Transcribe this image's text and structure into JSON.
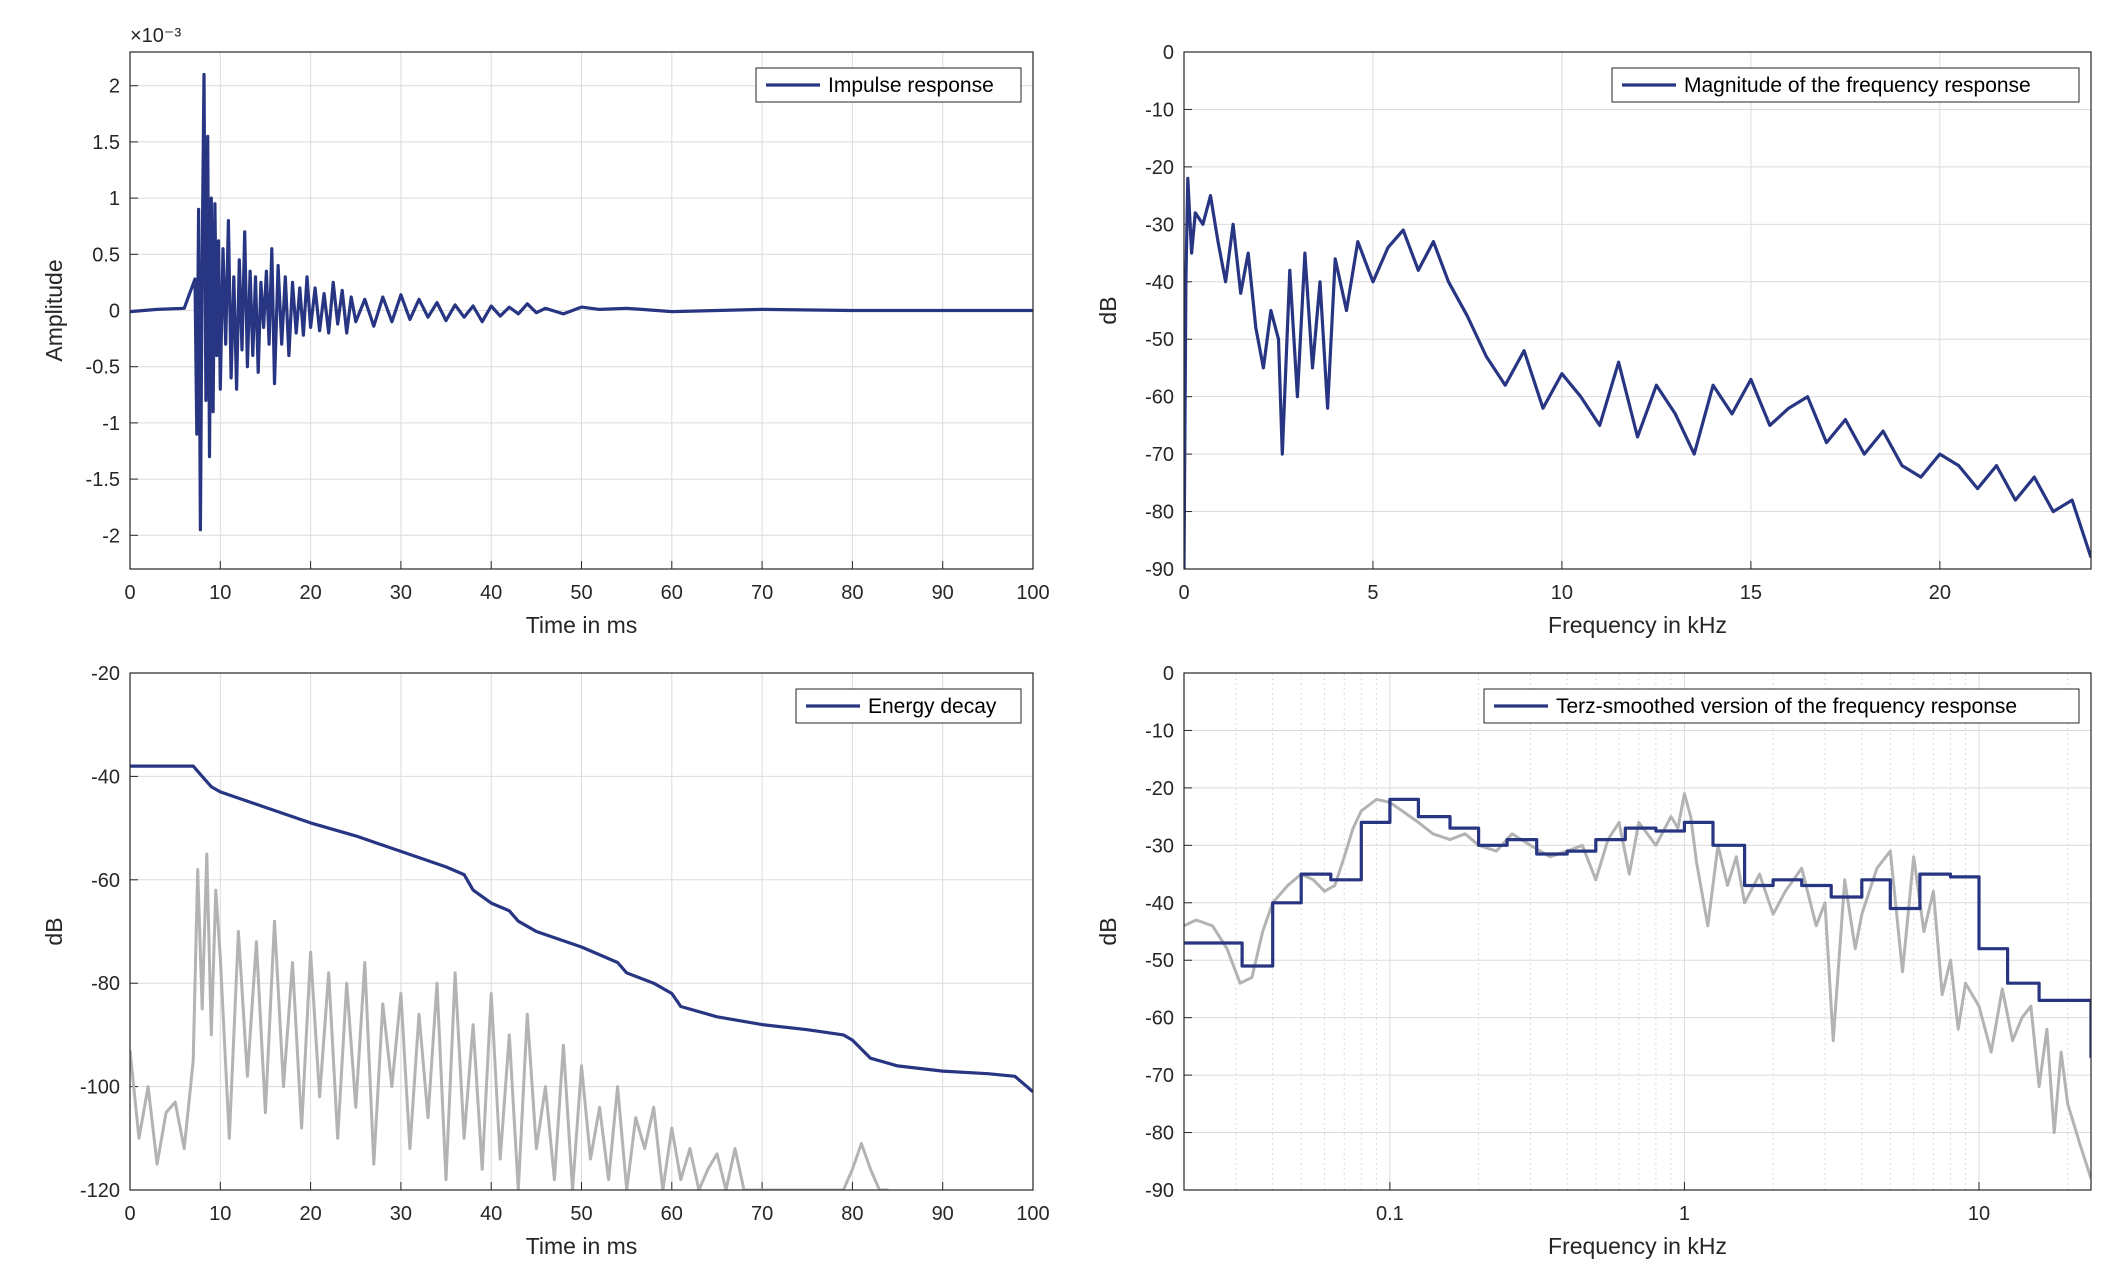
{
  "colors": {
    "series": "#273582",
    "gray": "#b3b3b3",
    "axis": "#262626",
    "grid": "#dcdcdc"
  },
  "chart_data": [
    {
      "type": "line",
      "xlabel": "Time in ms",
      "ylabel": "Amplitude",
      "exponent_label": "×10⁻³",
      "xlim": [
        0,
        100
      ],
      "ylim": [
        -2.3,
        2.3
      ],
      "xticks": [
        0,
        10,
        20,
        30,
        40,
        50,
        60,
        70,
        80,
        90,
        100
      ],
      "yticks": [
        -2,
        -1.5,
        -1,
        -0.5,
        0,
        0.5,
        1,
        1.5,
        2
      ],
      "ytick_labels": [
        "-2",
        "-1.5",
        "-1",
        "-0.5",
        "0",
        "0.5",
        "1",
        "1.5",
        "2"
      ],
      "grid": true,
      "legend_position": "top-right",
      "series": [
        {
          "name": "Impulse response",
          "color": "#273582",
          "x": [
            0,
            3,
            6,
            7.2,
            7.4,
            7.6,
            7.8,
            8.0,
            8.2,
            8.4,
            8.6,
            8.8,
            9.0,
            9.2,
            9.4,
            9.6,
            9.8,
            10.0,
            10.3,
            10.6,
            10.9,
            11.2,
            11.5,
            11.8,
            12.1,
            12.4,
            12.7,
            13.0,
            13.3,
            13.6,
            13.9,
            14.2,
            14.5,
            14.8,
            15.1,
            15.4,
            15.7,
            16.0,
            16.4,
            16.8,
            17.2,
            17.6,
            18.0,
            18.4,
            18.8,
            19.2,
            19.6,
            20.0,
            20.5,
            21.0,
            21.5,
            22.0,
            22.5,
            23.0,
            23.5,
            24.0,
            24.5,
            25.0,
            26.0,
            27.0,
            28.0,
            29.0,
            30.0,
            31.0,
            32.0,
            33.0,
            34.0,
            35.0,
            36.0,
            37.0,
            38.0,
            39.0,
            40.0,
            41.0,
            42.0,
            43.0,
            44.0,
            45.0,
            46.0,
            48.0,
            50.0,
            52.0,
            55.0,
            60.0,
            70.0,
            80.0,
            90.0,
            100.0
          ],
          "y": [
            -0.01,
            0.01,
            0.02,
            0.28,
            -1.1,
            0.9,
            -1.95,
            0.5,
            2.1,
            -0.8,
            1.55,
            -1.3,
            1.0,
            -0.9,
            0.95,
            -0.4,
            0.62,
            -0.7,
            0.55,
            -0.3,
            0.8,
            -0.6,
            0.3,
            -0.7,
            0.45,
            -0.35,
            0.7,
            -0.5,
            0.35,
            -0.4,
            0.3,
            -0.55,
            0.25,
            -0.15,
            0.35,
            -0.3,
            0.55,
            -0.65,
            0.4,
            -0.3,
            0.3,
            -0.4,
            0.25,
            -0.2,
            0.2,
            -0.22,
            0.3,
            -0.15,
            0.2,
            -0.18,
            0.15,
            -0.2,
            0.25,
            -0.12,
            0.18,
            -0.2,
            0.12,
            -0.1,
            0.1,
            -0.14,
            0.12,
            -0.1,
            0.14,
            -0.08,
            0.1,
            -0.06,
            0.07,
            -0.09,
            0.05,
            -0.06,
            0.04,
            -0.1,
            0.04,
            -0.05,
            0.03,
            -0.03,
            0.06,
            -0.02,
            0.02,
            -0.03,
            0.03,
            0.01,
            0.02,
            -0.01,
            0.01,
            0.0,
            0.0,
            0.0
          ]
        }
      ]
    },
    {
      "type": "line",
      "xlabel": "Frequency in kHz",
      "ylabel": "dB",
      "xlim": [
        0,
        24
      ],
      "ylim": [
        -90,
        0
      ],
      "xticks": [
        0,
        5,
        10,
        15,
        20
      ],
      "yticks": [
        0,
        -10,
        -20,
        -30,
        -40,
        -50,
        -60,
        -70,
        -80,
        -90
      ],
      "grid": true,
      "legend_position": "top-right",
      "series": [
        {
          "name": "Magnitude of the frequency response",
          "color": "#273582",
          "x": [
            0,
            0.05,
            0.1,
            0.2,
            0.3,
            0.5,
            0.7,
            0.9,
            1.1,
            1.3,
            1.5,
            1.7,
            1.9,
            2.1,
            2.3,
            2.5,
            2.6,
            2.8,
            3.0,
            3.2,
            3.4,
            3.6,
            3.8,
            4.0,
            4.3,
            4.6,
            5.0,
            5.4,
            5.8,
            6.2,
            6.6,
            7.0,
            7.5,
            8.0,
            8.5,
            9.0,
            9.5,
            10.0,
            10.5,
            11.0,
            11.5,
            12.0,
            12.5,
            13.0,
            13.5,
            14.0,
            14.5,
            15.0,
            15.5,
            16.0,
            16.5,
            17.0,
            17.5,
            18.0,
            18.5,
            19.0,
            19.5,
            20.0,
            20.5,
            21.0,
            21.5,
            22.0,
            22.5,
            23.0,
            23.5,
            24.0
          ],
          "y": [
            -90,
            -40,
            -22,
            -35,
            -28,
            -30,
            -25,
            -33,
            -40,
            -30,
            -42,
            -35,
            -48,
            -55,
            -45,
            -50,
            -70,
            -38,
            -60,
            -35,
            -55,
            -40,
            -62,
            -36,
            -45,
            -33,
            -40,
            -34,
            -31,
            -38,
            -33,
            -40,
            -46,
            -53,
            -58,
            -52,
            -62,
            -56,
            -60,
            -65,
            -54,
            -67,
            -58,
            -63,
            -70,
            -58,
            -63,
            -57,
            -65,
            -62,
            -60,
            -68,
            -64,
            -70,
            -66,
            -72,
            -74,
            -70,
            -72,
            -76,
            -72,
            -78,
            -74,
            -80,
            -78,
            -88
          ]
        }
      ]
    },
    {
      "type": "line",
      "xlabel": "Time in ms",
      "ylabel": "dB",
      "xlim": [
        0,
        100
      ],
      "ylim": [
        -120,
        -20
      ],
      "xticks": [
        0,
        10,
        20,
        30,
        40,
        50,
        60,
        70,
        80,
        90,
        100
      ],
      "yticks": [
        -20,
        -40,
        -60,
        -80,
        -100,
        -120
      ],
      "grid": true,
      "legend_position": "top-right",
      "series": [
        {
          "name": "Energy decay",
          "color": "#273582",
          "x": [
            0,
            7,
            8,
            9,
            10,
            15,
            20,
            25,
            30,
            35,
            37,
            38,
            40,
            42,
            43,
            45,
            50,
            54,
            55,
            58,
            60,
            61,
            65,
            70,
            75,
            79,
            80,
            82,
            85,
            90,
            95,
            98,
            100
          ],
          "y": [
            -38,
            -38,
            -40,
            -42,
            -43,
            -46,
            -49,
            -51.5,
            -54.5,
            -57.5,
            -59,
            -62,
            -64.5,
            -66,
            -68,
            -70,
            -73,
            -76,
            -78,
            -80,
            -82,
            -84.5,
            -86.5,
            -88,
            -89,
            -90,
            -91,
            -94.5,
            -96,
            -97,
            -97.5,
            -98,
            -101
          ]
        },
        {
          "color": "#b3b3b3",
          "x": [
            0,
            1,
            2,
            3,
            4,
            5,
            6,
            7,
            7.5,
            8,
            8.5,
            9,
            9.5,
            10,
            11,
            12,
            13,
            14,
            15,
            16,
            17,
            18,
            19,
            20,
            21,
            22,
            23,
            24,
            25,
            26,
            27,
            28,
            29,
            30,
            31,
            32,
            33,
            34,
            35,
            36,
            37,
            38,
            39,
            40,
            41,
            42,
            43,
            44,
            45,
            46,
            47,
            48,
            49,
            50,
            51,
            52,
            53,
            54,
            55,
            56,
            57,
            58,
            59,
            60,
            61,
            62,
            63,
            64,
            65,
            66,
            67,
            68,
            69,
            70,
            71,
            72,
            73,
            74,
            75,
            76,
            77,
            78,
            79,
            80,
            81,
            82,
            83,
            84
          ],
          "y": [
            -93,
            -110,
            -100,
            -115,
            -105,
            -103,
            -112,
            -95,
            -58,
            -85,
            -55,
            -90,
            -62,
            -75,
            -110,
            -70,
            -98,
            -72,
            -105,
            -68,
            -100,
            -76,
            -108,
            -74,
            -102,
            -78,
            -110,
            -80,
            -104,
            -76,
            -115,
            -84,
            -100,
            -82,
            -112,
            -86,
            -106,
            -80,
            -118,
            -78,
            -110,
            -88,
            -116,
            -82,
            -114,
            -90,
            -120,
            -86,
            -112,
            -100,
            -118,
            -92,
            -120,
            -96,
            -114,
            -104,
            -118,
            -100,
            -120,
            -106,
            -112,
            -104,
            -120,
            -108,
            -118,
            -112,
            -120,
            -116,
            -113,
            -120,
            -112,
            -120,
            -120,
            -120,
            -120,
            -120,
            -120,
            -120,
            -120,
            -120,
            -120,
            -120,
            -120,
            -116,
            -111,
            -116,
            -120,
            -120
          ]
        }
      ]
    },
    {
      "type": "line",
      "xscale": "log",
      "xlabel": "Frequency in kHz",
      "ylabel": "dB",
      "xlim": [
        0.02,
        24
      ],
      "ylim": [
        -90,
        0
      ],
      "xticks": [
        0.1,
        1,
        10
      ],
      "xtick_labels": [
        "0.1",
        "1",
        "10"
      ],
      "yticks": [
        0,
        -10,
        -20,
        -30,
        -40,
        -50,
        -60,
        -70,
        -80,
        -90
      ],
      "grid": true,
      "legend_position": "top-right",
      "series": [
        {
          "name": "Terz-smoothed version of the frequency response",
          "color": "#273582",
          "step": true,
          "x": [
            0.02,
            0.025,
            0.0315,
            0.04,
            0.05,
            0.063,
            0.08,
            0.1,
            0.125,
            0.16,
            0.2,
            0.25,
            0.315,
            0.4,
            0.5,
            0.63,
            0.8,
            1.0,
            1.25,
            1.6,
            2.0,
            2.5,
            3.15,
            4.0,
            5.0,
            6.3,
            8.0,
            10.0,
            12.5,
            16.0,
            20.0,
            24.0
          ],
          "y": [
            -47,
            -47,
            -51,
            -40,
            -35,
            -36,
            -26,
            -22,
            -25,
            -27,
            -30,
            -29,
            -31.5,
            -31,
            -29,
            -27,
            -27.5,
            -26,
            -30,
            -37,
            -36,
            -37,
            -39,
            -36,
            -41,
            -35,
            -35.5,
            -48,
            -54,
            -57,
            -57,
            -67
          ]
        },
        {
          "color": "#b3b3b3",
          "x": [
            0.02,
            0.022,
            0.025,
            0.028,
            0.031,
            0.034,
            0.037,
            0.04,
            0.045,
            0.05,
            0.055,
            0.06,
            0.065,
            0.07,
            0.075,
            0.08,
            0.09,
            0.1,
            0.11,
            0.125,
            0.14,
            0.16,
            0.18,
            0.2,
            0.23,
            0.26,
            0.3,
            0.35,
            0.4,
            0.45,
            0.5,
            0.55,
            0.6,
            0.65,
            0.7,
            0.8,
            0.9,
            0.95,
            1.0,
            1.05,
            1.1,
            1.2,
            1.3,
            1.4,
            1.5,
            1.6,
            1.8,
            2.0,
            2.2,
            2.5,
            2.8,
            3.0,
            3.2,
            3.5,
            3.8,
            4.0,
            4.5,
            5.0,
            5.5,
            6.0,
            6.5,
            7.0,
            7.5,
            8.0,
            8.5,
            9.0,
            10.0,
            11.0,
            12.0,
            13.0,
            14.0,
            15.0,
            16.0,
            17.0,
            18.0,
            19.0,
            20.0,
            22.0,
            24.0
          ],
          "y": [
            -44,
            -43,
            -44,
            -48,
            -54,
            -53,
            -45,
            -40,
            -37,
            -35,
            -36,
            -38,
            -37,
            -32,
            -27,
            -24,
            -22,
            -22.5,
            -24,
            -26,
            -28,
            -29,
            -28,
            -30,
            -31,
            -28,
            -30,
            -32,
            -31,
            -30,
            -36,
            -29,
            -26,
            -35,
            -26,
            -30,
            -25,
            -27,
            -21,
            -25,
            -33,
            -44,
            -30,
            -37,
            -32,
            -40,
            -35,
            -42,
            -38,
            -34,
            -44,
            -40,
            -64,
            -36,
            -48,
            -42,
            -34,
            -31,
            -52,
            -32,
            -45,
            -38,
            -56,
            -50,
            -62,
            -54,
            -58,
            -66,
            -55,
            -64,
            -60,
            -58,
            -72,
            -62,
            -80,
            -66,
            -75,
            -82,
            -88
          ]
        }
      ]
    }
  ]
}
